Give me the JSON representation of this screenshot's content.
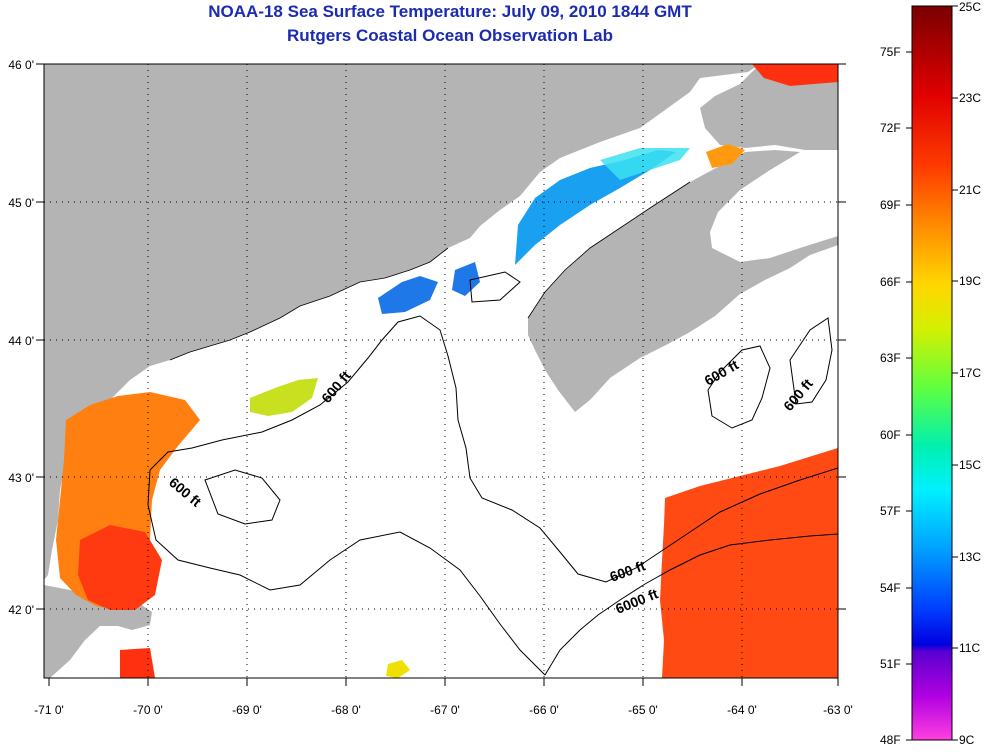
{
  "title": "NOAA-18 Sea Surface Temperature:  July 09, 2010 1844 GMT",
  "subtitle": "Rutgers Coastal Ocean Observation Lab",
  "map": {
    "lon_labels": [
      "-71 0'",
      "-70 0'",
      "-69 0'",
      "-68 0'",
      "-67 0'",
      "-66 0'",
      "-65 0'",
      "-64 0'",
      "-63 0'"
    ],
    "lat_labels": [
      "46 0'",
      "45 0'",
      "44 0'",
      "43 0'",
      "42 0'"
    ],
    "contour_labels": [
      "600 ft",
      "600 ft",
      "600 ft",
      "600 ft",
      "600 ft",
      "6000 ft"
    ],
    "colors": {
      "land": "#b4b4b4",
      "ocean_cloud": "#ffffff"
    }
  },
  "colorbar": {
    "fahrenheit_labels": [
      "75F",
      "72F",
      "69F",
      "66F",
      "63F",
      "60F",
      "57F",
      "54F",
      "51F",
      "48F"
    ],
    "celsius_labels": [
      "25C",
      "23C",
      "21C",
      "19C",
      "17C",
      "15C",
      "13C",
      "11C",
      "9C"
    ]
  }
}
